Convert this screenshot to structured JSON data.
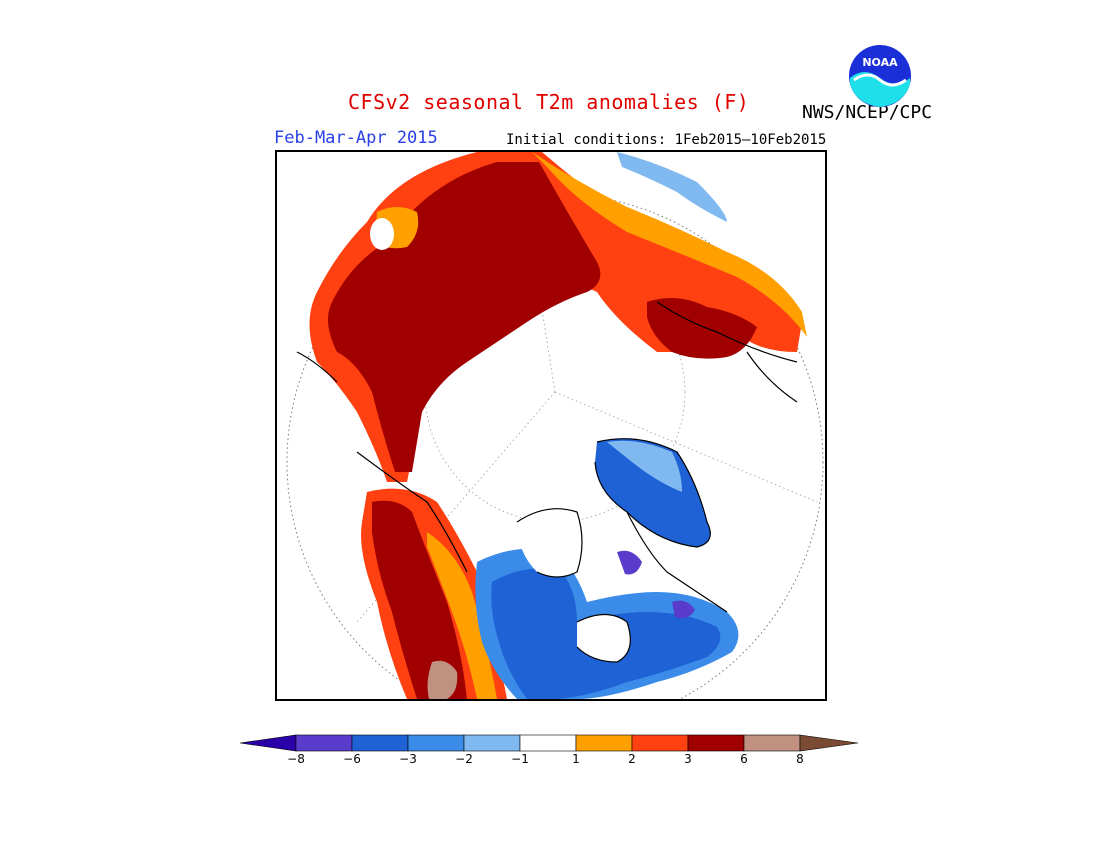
{
  "title": "CFSv2 seasonal T2m anomalies (F)",
  "agency": "NWS/NCEP/CPC",
  "logo_text": "NOAA",
  "season": "Feb-Mar-Apr 2015",
  "initial_conditions": "Initial conditions: 1Feb2015–10Feb2015",
  "legend": {
    "ticks": [
      "−8",
      "−6",
      "−3",
      "−2",
      "−1",
      "1",
      "2",
      "3",
      "6",
      "8"
    ],
    "colors": [
      "#2a00a8",
      "#5a3ccc",
      "#1f62d6",
      "#3a8ce8",
      "#80b8f0",
      "#ffffff",
      "#ffa000",
      "#ff4010",
      "#a00000",
      "#c09080",
      "#7a4a32"
    ]
  },
  "colors": {
    "title": "#e00000",
    "season": "#2a40e8",
    "warm_dark": "#a00000",
    "warm_mid": "#ff4010",
    "warm_light": "#ffa000",
    "cool_light": "#80b8f0",
    "cool_mid": "#3a8ce8",
    "cool_dark": "#1f62d6",
    "very_cold": "#5a3ccc",
    "very_warm": "#c09080"
  }
}
